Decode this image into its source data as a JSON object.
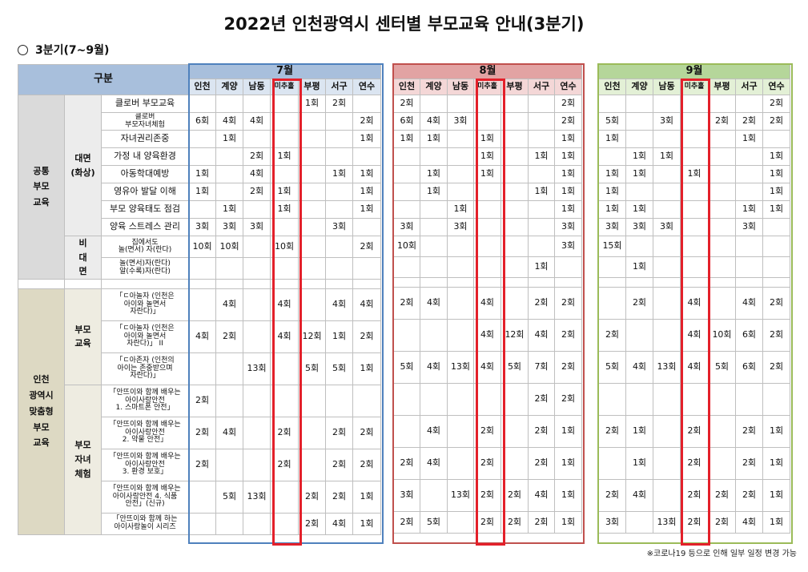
{
  "title": "2022년 인천광역시 센터별 부모교육 안내(3분기)",
  "quarter": "3분기(7~9월)",
  "header": {
    "gubun": "구분"
  },
  "categories": {
    "common": "공통\n부모\n교육",
    "faceToFace": "대면\n(화상)",
    "nonFace": "비\n대\n면",
    "incheon": "인천\n광역시\n맞춤형\n부모\n교육",
    "parentEdu": "부모\n교육",
    "parentChild": "부모\n자녀\n체험"
  },
  "months": [
    "7월",
    "8월",
    "9월"
  ],
  "centers": [
    "인천",
    "계양",
    "남동",
    "미추홀",
    "부평",
    "서구",
    "연수"
  ],
  "programs": [
    "클로버 부모교육",
    "클로버\n부모자녀체험",
    "자녀권리존중",
    "가정 내 양육환경",
    "아동학대예방",
    "영유아 발달 이해",
    "부모 양육태도 점검",
    "양육 스트레스 관리",
    "집에서도\n놀(면서) 자(란다)",
    "놀(면서)자(란다)\n알(수록)자(란다)",
    "「ㄷ아놀자 (인천은\n아이와 놀면서\n자란다)」",
    "「ㄷ아놀자 (인천은\n아이와 놀면서\n자란다)」 II",
    "「ㄷ아존자 (인천의\n아이는 존중받으며\n자란다)」",
    "「안뜨이와 함께 배우는\n아이사랑안전\n1. 스마트폰 안전」",
    "「안뜨이와 함께 배우는\n아이사랑안전\n2. 약물 안전」",
    "「안뜨이와 함께 배우는\n아이사랑안전\n3. 환경 보호」",
    "「안뜨이와 함께 배우는\n아이사랑안전 4. 식품\n안전」(신규)",
    "「안뜨이와 함께 하는\n아이사랑놀이 시리즈"
  ],
  "jul": [
    [
      "",
      "",
      "",
      "",
      "1회",
      "2회",
      ""
    ],
    [
      "6회",
      "4회",
      "4회",
      "",
      "",
      "",
      "2회"
    ],
    [
      "",
      "1회",
      "",
      "",
      "",
      "",
      "1회"
    ],
    [
      "",
      "",
      "2회",
      "1회",
      "",
      "",
      ""
    ],
    [
      "1회",
      "",
      "4회",
      "",
      "",
      "1회",
      "1회"
    ],
    [
      "1회",
      "",
      "2회",
      "1회",
      "",
      "",
      "1회"
    ],
    [
      "",
      "1회",
      "",
      "1회",
      "",
      "",
      "1회"
    ],
    [
      "3회",
      "3회",
      "3회",
      "",
      "",
      "3회",
      ""
    ],
    [
      "10회",
      "10회",
      "",
      "10회",
      "",
      "",
      "2회"
    ],
    [
      "",
      "",
      "",
      "",
      "",
      "",
      ""
    ],
    [
      "",
      "4회",
      "",
      "4회",
      "",
      "4회",
      "4회"
    ],
    [
      "4회",
      "2회",
      "",
      "4회",
      "12회",
      "1회",
      "2회"
    ],
    [
      "",
      "",
      "13회",
      "",
      "5회",
      "5회",
      "1회"
    ],
    [
      "2회",
      "",
      "",
      "",
      "",
      "",
      ""
    ],
    [
      "2회",
      "4회",
      "",
      "2회",
      "",
      "2회",
      "2회"
    ],
    [
      "2회",
      "",
      "",
      "2회",
      "",
      "2회",
      "2회"
    ],
    [
      "",
      "5회",
      "13회",
      "",
      "2회",
      "2회",
      "1회"
    ],
    [
      "",
      "",
      "",
      "",
      "2회",
      "4회",
      "1회"
    ]
  ],
  "aug": [
    [
      "2회",
      "",
      "",
      "",
      "",
      "",
      "2회"
    ],
    [
      "6회",
      "4회",
      "3회",
      "",
      "",
      "",
      "2회"
    ],
    [
      "1회",
      "1회",
      "",
      "1회",
      "",
      "",
      "1회"
    ],
    [
      "",
      "",
      "",
      "1회",
      "",
      "1회",
      "1회"
    ],
    [
      "",
      "1회",
      "",
      "1회",
      "",
      "",
      "1회"
    ],
    [
      "",
      "1회",
      "",
      "",
      "",
      "1회",
      "1회"
    ],
    [
      "",
      "",
      "1회",
      "",
      "",
      "",
      "1회"
    ],
    [
      "3회",
      "",
      "3회",
      "",
      "",
      "",
      "3회"
    ],
    [
      "10회",
      "",
      "",
      "",
      "",
      "",
      "3회"
    ],
    [
      "",
      "",
      "",
      "",
      "",
      "1회",
      ""
    ],
    [
      "2회",
      "4회",
      "",
      "4회",
      "",
      "2회",
      "2회"
    ],
    [
      "",
      "",
      "",
      "4회",
      "12회",
      "4회",
      "2회"
    ],
    [
      "5회",
      "4회",
      "13회",
      "4회",
      "5회",
      "7회",
      "2회"
    ],
    [
      "",
      "",
      "",
      "",
      "",
      "2회",
      "2회"
    ],
    [
      "",
      "4회",
      "",
      "2회",
      "",
      "2회",
      "1회"
    ],
    [
      "2회",
      "4회",
      "",
      "2회",
      "",
      "2회",
      "1회"
    ],
    [
      "3회",
      "",
      "13회",
      "2회",
      "2회",
      "4회",
      "1회"
    ],
    [
      "2회",
      "5회",
      "",
      "2회",
      "2회",
      "2회",
      "1회"
    ]
  ],
  "sep": [
    [
      "",
      "",
      "",
      "",
      "",
      "",
      "2회"
    ],
    [
      "5회",
      "",
      "3회",
      "",
      "2회",
      "2회",
      "2회"
    ],
    [
      "1회",
      "",
      "",
      "",
      "",
      "1회",
      ""
    ],
    [
      "",
      "1회",
      "1회",
      "",
      "",
      "",
      "1회"
    ],
    [
      "1회",
      "1회",
      "",
      "1회",
      "",
      "",
      "1회"
    ],
    [
      "1회",
      "",
      "",
      "",
      "",
      "",
      "1회"
    ],
    [
      "1회",
      "1회",
      "",
      "",
      "",
      "1회",
      "1회"
    ],
    [
      "3회",
      "3회",
      "3회",
      "",
      "",
      "3회",
      ""
    ],
    [
      "15회",
      "",
      "",
      "",
      "",
      "",
      ""
    ],
    [
      "",
      "1회",
      "",
      "",
      "",
      "",
      ""
    ],
    [
      "",
      "2회",
      "",
      "4회",
      "",
      "4회",
      "2회"
    ],
    [
      "2회",
      "",
      "",
      "4회",
      "10회",
      "6회",
      "2회"
    ],
    [
      "5회",
      "4회",
      "13회",
      "4회",
      "5회",
      "6회",
      "2회"
    ],
    [
      "",
      "",
      "",
      "",
      "",
      "",
      ""
    ],
    [
      "2회",
      "1회",
      "",
      "2회",
      "",
      "2회",
      "1회"
    ],
    [
      "",
      "1회",
      "",
      "2회",
      "",
      "2회",
      "1회"
    ],
    [
      "2회",
      "4회",
      "",
      "2회",
      "2회",
      "2회",
      "1회"
    ],
    [
      "3회",
      "",
      "13회",
      "2회",
      "2회",
      "4회",
      "1회"
    ]
  ],
  "footnote": "※코로나19 등으로 인해 일부 일정 변경 가능"
}
